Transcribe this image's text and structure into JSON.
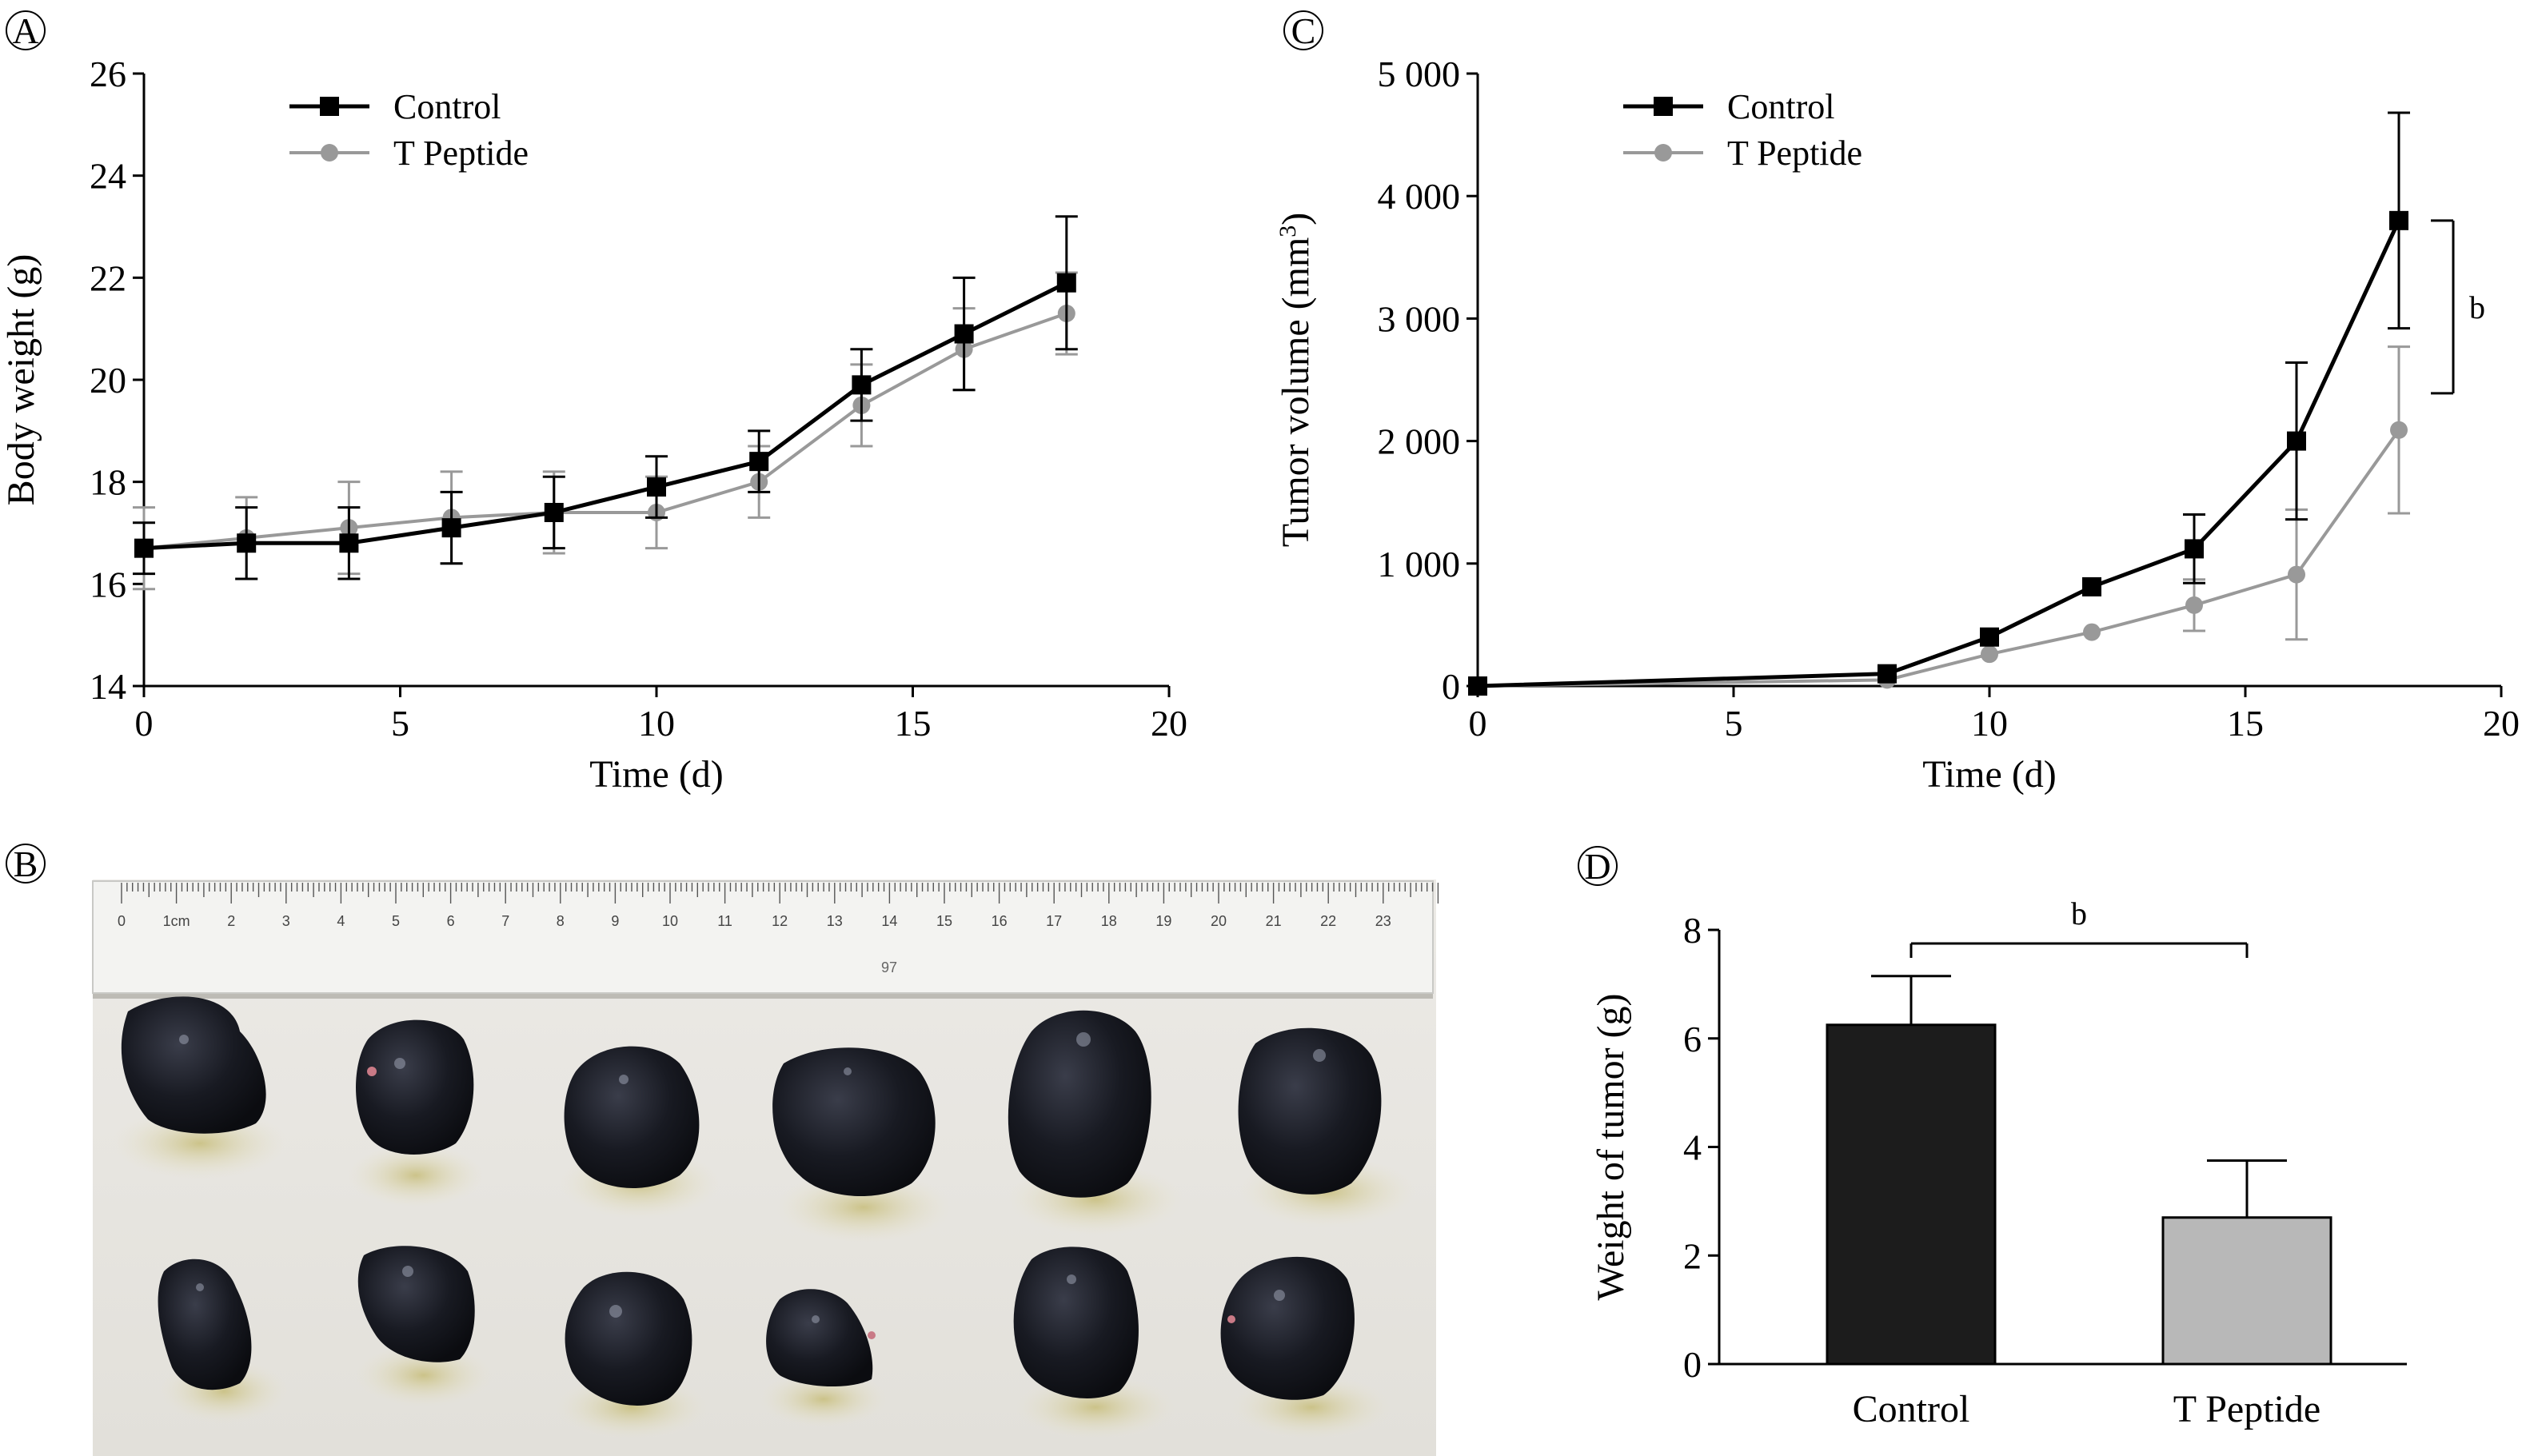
{
  "colors": {
    "control": "#000000",
    "t_peptide": "#999999",
    "control_bar": "#1c1c1c",
    "t_peptide_bar": "#b8b8b8"
  },
  "panel_B": {
    "label": "B",
    "ruler_labels": [
      "0",
      "1cm",
      "2",
      "3",
      "4",
      "5",
      "6",
      "7",
      "8",
      "9",
      "10",
      "11",
      "12",
      "13",
      "14",
      "15",
      "16",
      "17",
      "18",
      "19",
      "20",
      "21",
      "22",
      "23"
    ],
    "ruler_mark": "97"
  },
  "chart_data": [
    {
      "id": "A",
      "type": "line",
      "label": "A",
      "xlabel": "Time (d)",
      "ylabel": "Body weight (g)",
      "xlim": [
        0,
        20
      ],
      "ylim": [
        14,
        26
      ],
      "xticks": [
        0,
        5,
        10,
        15,
        20
      ],
      "yticks": [
        14,
        16,
        18,
        20,
        22,
        24,
        26
      ],
      "xtick_labels": [
        "0",
        "5",
        "10",
        "15",
        "20"
      ],
      "ytick_labels": [
        "14",
        "16",
        "18",
        "20",
        "22",
        "24",
        "26"
      ],
      "legend_position": "top-left",
      "series": [
        {
          "name": "Control",
          "marker": "square",
          "x": [
            0,
            2,
            4,
            6,
            8,
            10,
            12,
            14,
            16,
            18
          ],
          "y": [
            16.7,
            16.8,
            16.8,
            17.1,
            17.4,
            17.9,
            18.4,
            19.9,
            20.9,
            21.9
          ],
          "err": [
            0.5,
            0.7,
            0.7,
            0.7,
            0.7,
            0.6,
            0.6,
            0.7,
            1.1,
            1.3
          ]
        },
        {
          "name": "T Peptide",
          "marker": "circle",
          "x": [
            0,
            2,
            4,
            6,
            8,
            10,
            12,
            14,
            16,
            18
          ],
          "y": [
            16.7,
            16.9,
            17.1,
            17.3,
            17.4,
            17.4,
            18.0,
            19.5,
            20.6,
            21.3
          ],
          "err": [
            0.8,
            0.8,
            0.9,
            0.9,
            0.8,
            0.7,
            0.7,
            0.8,
            0.8,
            0.8
          ]
        }
      ]
    },
    {
      "id": "C",
      "type": "line",
      "label": "C",
      "xlabel": "Time (d)",
      "ylabel": "Tumor volume (mm",
      "ylabel_sup": "3",
      "ylabel_close": ")",
      "xlim": [
        0,
        20
      ],
      "ylim": [
        0,
        5000
      ],
      "xticks": [
        0,
        5,
        10,
        15,
        20
      ],
      "yticks": [
        0,
        1000,
        2000,
        3000,
        4000,
        5000
      ],
      "xtick_labels": [
        "0",
        "5",
        "10",
        "15",
        "20"
      ],
      "ytick_labels": [
        "0",
        "1 000",
        "2 000",
        "3 000",
        "4 000",
        "5 000"
      ],
      "legend_position": "top-left",
      "significance": {
        "label": "b",
        "between": "day 18 Control vs T Peptide"
      },
      "series": [
        {
          "name": "Control",
          "marker": "square",
          "x": [
            0,
            8,
            10,
            12,
            14,
            16,
            18
          ],
          "y": [
            0,
            100,
            400,
            810,
            1120,
            2000,
            3800
          ],
          "err": [
            0,
            0,
            0,
            0,
            280,
            640,
            880
          ]
        },
        {
          "name": "T Peptide",
          "marker": "circle",
          "x": [
            0,
            8,
            10,
            12,
            14,
            16,
            18
          ],
          "y": [
            0,
            50,
            260,
            440,
            660,
            910,
            2090
          ],
          "err": [
            0,
            0,
            0,
            0,
            210,
            530,
            680
          ]
        }
      ]
    },
    {
      "id": "D",
      "type": "bar",
      "label": "D",
      "xlabel": "",
      "ylabel": "Weight of tumor (g)",
      "ylim": [
        0,
        8
      ],
      "yticks": [
        0,
        2,
        4,
        6,
        8
      ],
      "ytick_labels": [
        "0",
        "2",
        "4",
        "6",
        "8"
      ],
      "categories": [
        "Control",
        "T Peptide"
      ],
      "values": [
        6.25,
        2.7
      ],
      "err": [
        0.9,
        1.05
      ],
      "significance": {
        "label": "b",
        "between": [
          "Control",
          "T Peptide"
        ]
      }
    }
  ]
}
